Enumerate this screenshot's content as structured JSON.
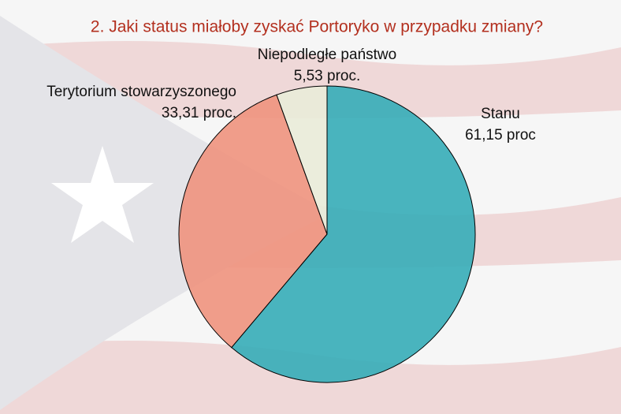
{
  "chart_data": {
    "type": "pie",
    "title": "2. Jaki status miałoby zyskać Portoryko w przypadku zmiany?",
    "categories": [
      "Stanu",
      "Terytorium stowarzyszonego",
      "Niepodległe państwo"
    ],
    "values": [
      61.15,
      33.31,
      5.53
    ],
    "value_labels": [
      "61,15 proc",
      "33,31 proc.",
      "5,53 proc."
    ],
    "colors": [
      "#3aaeb9",
      "#ef9580",
      "#e9ecd9"
    ]
  }
}
